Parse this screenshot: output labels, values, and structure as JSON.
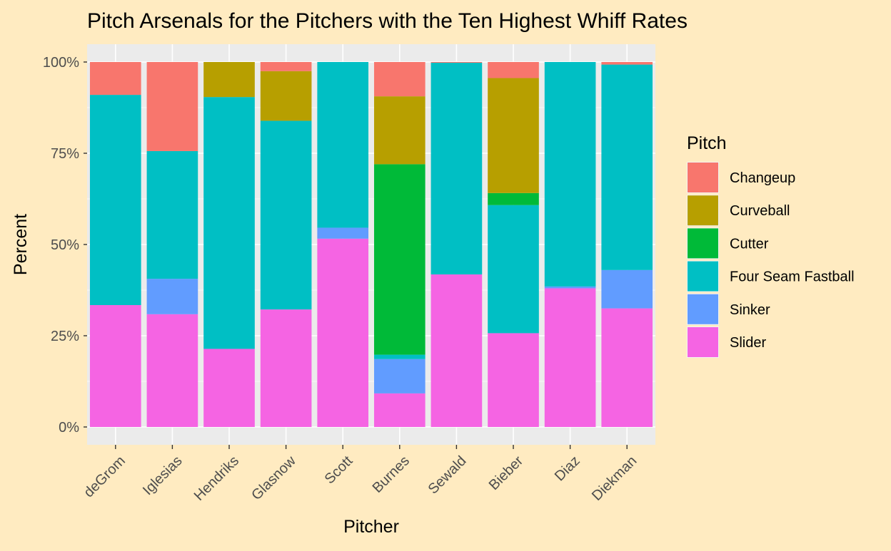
{
  "chart_data": {
    "type": "bar",
    "stacked": true,
    "title": "Pitch Arsenals for the Pitchers with the Ten Highest Whiff Rates",
    "xlabel": "Pitcher",
    "ylabel": "Percent",
    "ylim": [
      0,
      1
    ],
    "yticks": [
      0,
      0.25,
      0.5,
      0.75,
      1
    ],
    "ytick_labels": [
      "0%",
      "25%",
      "50%",
      "75%",
      "100%"
    ],
    "grid": true,
    "legend_position": "right",
    "legend_title": "Pitch",
    "categories": [
      "deGrom",
      "Iglesias",
      "Hendriks",
      "Glasnow",
      "Scott",
      "Burnes",
      "Sewald",
      "Bieber",
      "Diaz",
      "Diekman"
    ],
    "series": [
      {
        "name": "Slider",
        "color": "#F564E3",
        "values": [
          0.334,
          0.309,
          0.214,
          0.322,
          0.516,
          0.092,
          0.418,
          0.257,
          0.38,
          0.325
        ]
      },
      {
        "name": "Sinker",
        "color": "#619CFF",
        "values": [
          0.0,
          0.097,
          0.0,
          0.0,
          0.03,
          0.094,
          0.0,
          0.0,
          0.005,
          0.105
        ]
      },
      {
        "name": "Four Seam Fastball",
        "color": "#00BFC4",
        "values": [
          0.576,
          0.35,
          0.69,
          0.517,
          0.454,
          0.012,
          0.58,
          0.351,
          0.615,
          0.563
        ]
      },
      {
        "name": "Cutter",
        "color": "#00BA38",
        "values": [
          0.0,
          0.0,
          0.0,
          0.0,
          0.0,
          0.522,
          0.0,
          0.033,
          0.0,
          0.0
        ]
      },
      {
        "name": "Curveball",
        "color": "#B79F00",
        "values": [
          0.0,
          0.0,
          0.096,
          0.136,
          0.0,
          0.186,
          0.0,
          0.315,
          0.0,
          0.0
        ]
      },
      {
        "name": "Changeup",
        "color": "#F8766D",
        "values": [
          0.09,
          0.244,
          0.0,
          0.025,
          0.0,
          0.094,
          0.002,
          0.044,
          0.0,
          0.007
        ]
      }
    ],
    "legend_order": [
      "Changeup",
      "Curveball",
      "Cutter",
      "Four Seam Fastball",
      "Sinker",
      "Slider"
    ],
    "colors": {
      "background": "#FFEBC1",
      "panel": "#EBEBEB",
      "grid": "#FFFFFF",
      "text": "#000000",
      "tick_text": "#4D4D4D"
    }
  }
}
